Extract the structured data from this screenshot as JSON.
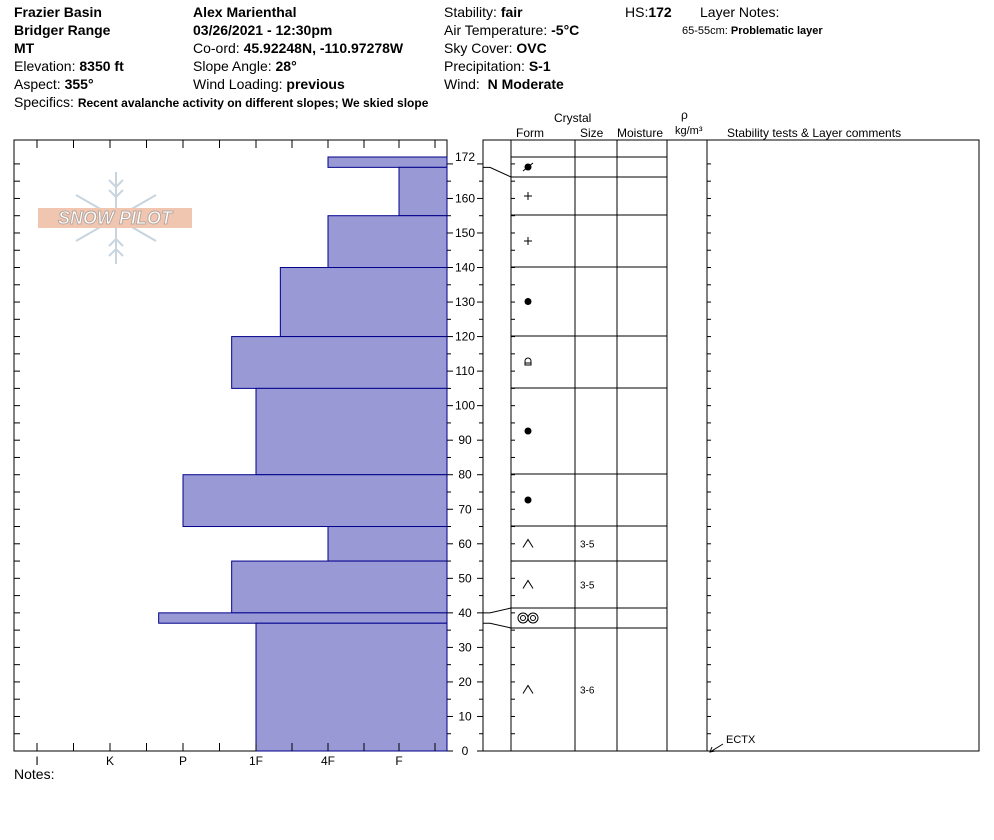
{
  "header": {
    "location": "Frazier Basin",
    "range": "Bridger Range",
    "state": "MT",
    "elevation_label": "Elevation:",
    "elevation_value": "8350 ft",
    "aspect_label": "Aspect:",
    "aspect_value": "355°",
    "observer": "Alex Marienthal",
    "datetime": "03/26/2021 - 12:30pm",
    "coord_label": "Co-ord:",
    "coord_value": "45.92248N, -110.97278W",
    "slope_label": "Slope Angle:",
    "slope_value": "28°",
    "wind_loading_label": "Wind Loading:",
    "wind_loading_value": "previous",
    "stability_label": "Stability:",
    "stability_value": "fair",
    "air_temp_label": "Air Temperature:",
    "air_temp_value": "-5°C",
    "sky_label": "Sky Cover:",
    "sky_value": "OVC",
    "precip_label": "Precipitation:",
    "precip_value": "S-1",
    "wind_label": "Wind:",
    "wind_value": "N Moderate",
    "hs_label": "HS:",
    "hs_value": "172",
    "layer_notes_label": "Layer Notes:",
    "layer_note_range": "65-55cm:",
    "layer_note_text": "Problematic layer",
    "specifics_label": "Specifics:",
    "specifics_value": "Recent avalanche activity on different slopes; We skied slope"
  },
  "columns": {
    "crystal": "Crystal",
    "form": "Form",
    "size": "Size",
    "moisture": "Moisture",
    "rho": "ρ",
    "density_unit": "kg/m³",
    "stability_tests": "Stability tests & Layer comments"
  },
  "notes_label": "Notes:",
  "logo_text": "SNOW PILOT",
  "stability_test": {
    "text": "ECTX",
    "height": 0
  },
  "colors": {
    "hardness_fill": "#9999d6",
    "hardness_stroke": "#00008b"
  },
  "chart_data": {
    "type": "bar",
    "title": "",
    "xlabel": "",
    "ylabel": "",
    "orientation": "horizontal",
    "hardness_scale": [
      "I",
      "K",
      "P",
      "1F",
      "4F",
      "F"
    ],
    "ylim": [
      0,
      172
    ],
    "y_ticks": [
      0,
      10,
      20,
      30,
      40,
      50,
      60,
      70,
      80,
      90,
      100,
      110,
      120,
      130,
      140,
      150,
      160,
      172
    ],
    "layers": [
      {
        "top": 172,
        "bottom": 169,
        "hardness": "4F",
        "form": "melt-freeze",
        "size": ""
      },
      {
        "top": 169,
        "bottom": 155,
        "hardness": "F",
        "form": "decomposing",
        "size": ""
      },
      {
        "top": 155,
        "bottom": 140,
        "hardness": "4F",
        "form": "decomposing",
        "size": ""
      },
      {
        "top": 140,
        "bottom": 120,
        "hardness": "1F+",
        "form": "rounded",
        "size": ""
      },
      {
        "top": 120,
        "bottom": 105,
        "hardness": "1F-",
        "form": "melt-form",
        "size": ""
      },
      {
        "top": 105,
        "bottom": 80,
        "hardness": "1F",
        "form": "rounded",
        "size": ""
      },
      {
        "top": 80,
        "bottom": 65,
        "hardness": "P",
        "form": "rounded",
        "size": ""
      },
      {
        "top": 65,
        "bottom": 55,
        "hardness": "4F",
        "form": "depth-hoar",
        "size": "3-5"
      },
      {
        "top": 55,
        "bottom": 40,
        "hardness": "1F-",
        "form": "depth-hoar",
        "size": "3-5"
      },
      {
        "top": 40,
        "bottom": 37,
        "hardness": "P-",
        "form": "melt-freeze-crust",
        "size": ""
      },
      {
        "top": 37,
        "bottom": 0,
        "hardness": "1F",
        "form": "depth-hoar",
        "size": "3-6"
      }
    ]
  }
}
